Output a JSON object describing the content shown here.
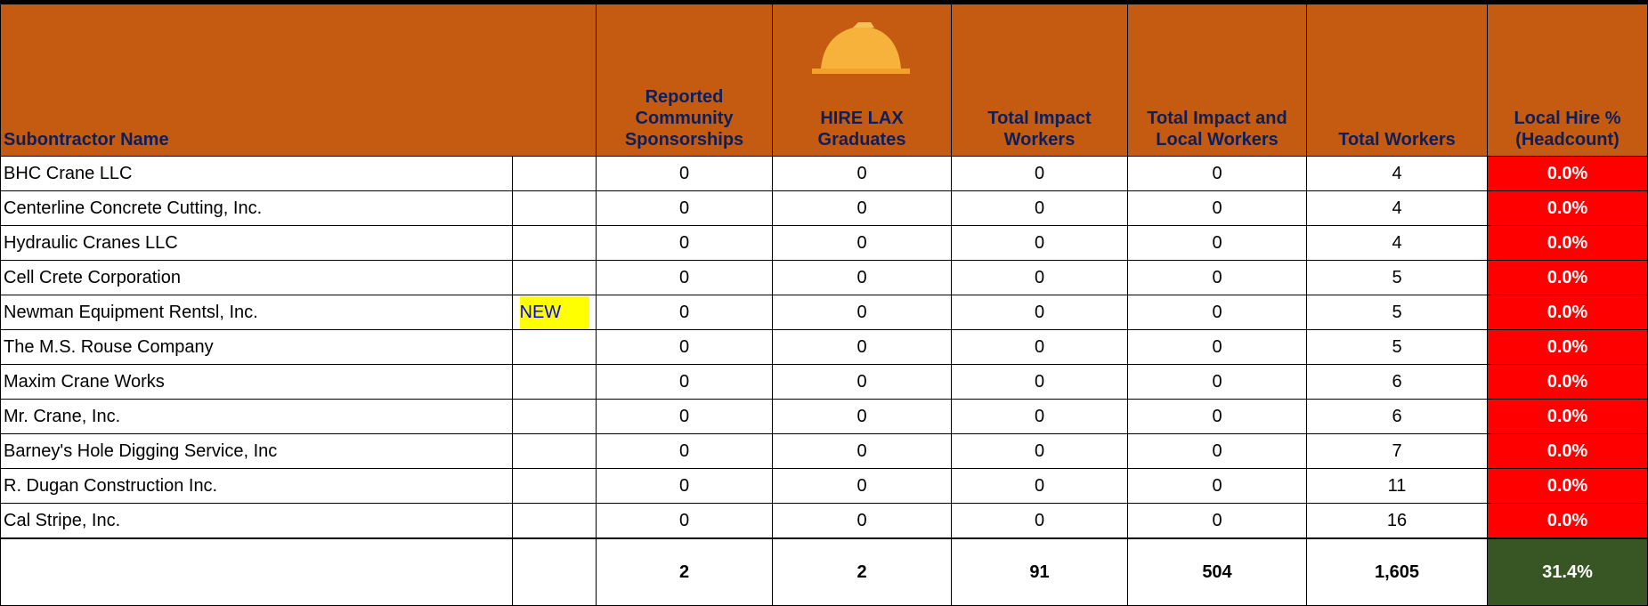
{
  "header": {
    "columns": [
      "Subontractor Name",
      "Reported Community Sponsorships",
      "HIRE LAX Graduates",
      "Total Impact Workers",
      "Total Impact and Local Workers",
      "Total Workers",
      "Local Hire % (Headcount)"
    ]
  },
  "table": {
    "rows": [
      {
        "name": "BHC Crane LLC",
        "values": [
          "0",
          "0",
          "0",
          "0",
          "4"
        ],
        "local_hire": "0.0%"
      },
      {
        "name": "Centerline Concrete Cutting, Inc.",
        "values": [
          "0",
          "0",
          "0",
          "0",
          "4"
        ],
        "local_hire": "0.0%"
      },
      {
        "name": "Hydraulic Cranes LLC",
        "values": [
          "0",
          "0",
          "0",
          "0",
          "4"
        ],
        "local_hire": "0.0%"
      },
      {
        "name": "Cell Crete Corporation",
        "values": [
          "0",
          "0",
          "0",
          "0",
          "5"
        ],
        "local_hire": "0.0%"
      },
      {
        "name": "Newman Equipment Rentsl, Inc.",
        "flag": "NEW",
        "values": [
          "0",
          "0",
          "0",
          "0",
          "5"
        ],
        "local_hire": "0.0%"
      },
      {
        "name": "The M.S. Rouse Company",
        "values": [
          "0",
          "0",
          "0",
          "0",
          "5"
        ],
        "local_hire": "0.0%"
      },
      {
        "name": "Maxim Crane Works",
        "values": [
          "0",
          "0",
          "0",
          "0",
          "6"
        ],
        "local_hire": "0.0%"
      },
      {
        "name": "Mr. Crane, Inc.",
        "values": [
          "0",
          "0",
          "0",
          "0",
          "6"
        ],
        "local_hire": "0.0%"
      },
      {
        "name": "Barney's Hole Digging Service, Inc",
        "values": [
          "0",
          "0",
          "0",
          "0",
          "7"
        ],
        "local_hire": "0.0%"
      },
      {
        "name": "R. Dugan Construction Inc.",
        "values": [
          "0",
          "0",
          "0",
          "0",
          "11"
        ],
        "local_hire": "0.0%"
      },
      {
        "name": "Cal Stripe, Inc.",
        "values": [
          "0",
          "0",
          "0",
          "0",
          "16"
        ],
        "local_hire": "0.0%"
      }
    ],
    "totals": {
      "values": [
        "2",
        "2",
        "91",
        "504",
        "1,605"
      ],
      "local_hire": "31.4%"
    }
  }
}
